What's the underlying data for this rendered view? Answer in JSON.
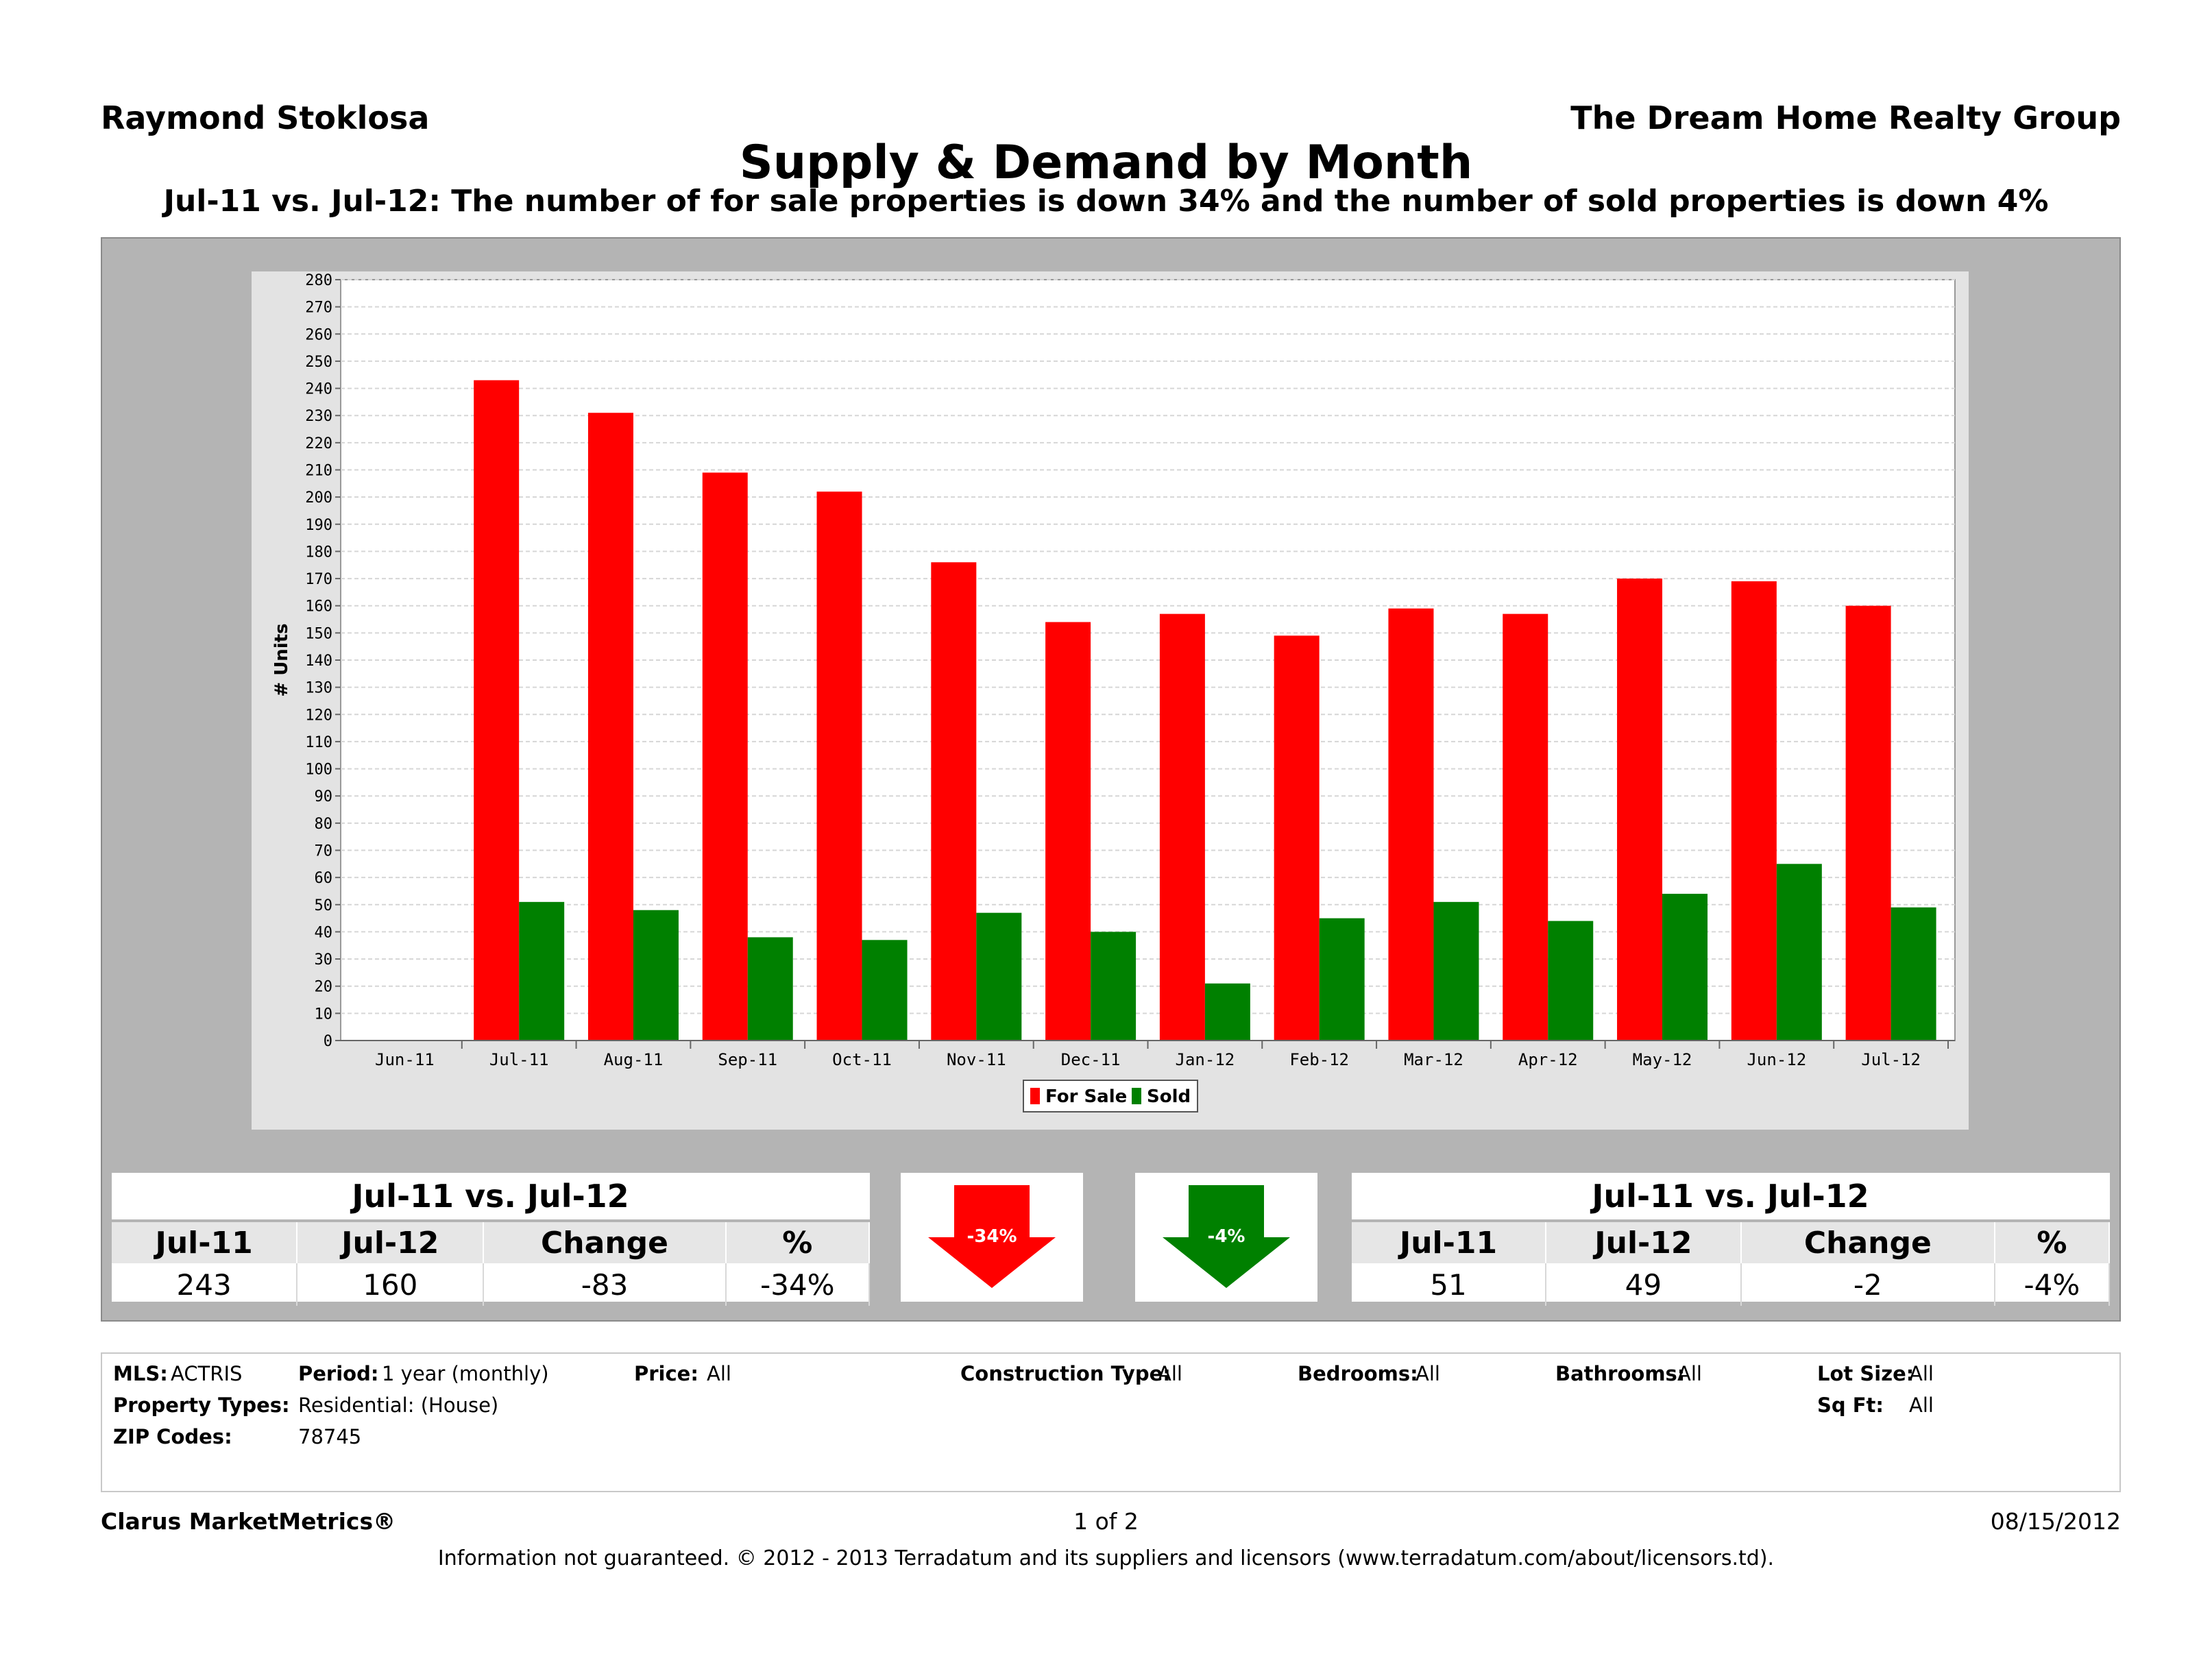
{
  "header": {
    "agent": "Raymond Stoklosa",
    "company": "The Dream Home Realty Group"
  },
  "chart_data": {
    "type": "bar",
    "title": "Supply & Demand by Month",
    "subtitle": "Jul-11 vs. Jul-12:  The number of for sale properties is down 34% and the number of sold properties is down 4%",
    "ylabel": "# Units",
    "xlabel": "",
    "ylim": [
      0,
      280
    ],
    "y_step": 10,
    "grid": true,
    "legend_position": "bottom-center",
    "categories": [
      "Jun-11",
      "Jul-11",
      "Aug-11",
      "Sep-11",
      "Oct-11",
      "Nov-11",
      "Dec-11",
      "Jan-12",
      "Feb-12",
      "Mar-12",
      "Apr-12",
      "May-12",
      "Jun-12",
      "Jul-12"
    ],
    "series": [
      {
        "name": "For Sale",
        "color": "#ff0000",
        "values": [
          null,
          243,
          231,
          209,
          202,
          176,
          154,
          157,
          149,
          159,
          157,
          170,
          169,
          160
        ]
      },
      {
        "name": "Sold",
        "color": "#008000",
        "values": [
          null,
          51,
          48,
          38,
          37,
          47,
          40,
          21,
          45,
          51,
          44,
          54,
          65,
          49
        ]
      }
    ]
  },
  "summary": {
    "for_sale": {
      "heading": "Jul-11 vs. Jul-12",
      "cols": [
        "Jul-11",
        "Jul-12",
        "Change",
        "%"
      ],
      "vals": [
        "243",
        "160",
        "-83",
        "-34%"
      ],
      "arrow_label": "-34%",
      "arrow_color": "#ff0000"
    },
    "sold": {
      "heading": "Jul-11 vs. Jul-12",
      "cols": [
        "Jul-11",
        "Jul-12",
        "Change",
        "%"
      ],
      "vals": [
        "51",
        "49",
        "-2",
        "-4%"
      ],
      "arrow_label": "-4%",
      "arrow_color": "#008000"
    }
  },
  "criteria": {
    "mls_label": "MLS:",
    "mls_value": "ACTRIS",
    "period_label": "Period:",
    "period_value": "1 year (monthly)",
    "price_label": "Price:",
    "price_value": "All",
    "construction_label": "Construction Type:",
    "construction_value": "All",
    "bedrooms_label": "Bedrooms:",
    "bedrooms_value": "All",
    "bathrooms_label": "Bathrooms:",
    "bathrooms_value": "All",
    "lot_label": "Lot Size:",
    "lot_value": "All",
    "sqft_label": "Sq Ft:",
    "sqft_value": "All",
    "proptype_label": "Property Types:",
    "proptype_value": "Residential: (House)",
    "zip_label": "ZIP Codes:",
    "zip_value": "78745"
  },
  "footer": {
    "brand": "Clarus MarketMetrics®",
    "page": "1 of 2",
    "date": "08/15/2012",
    "disclaimer": "Information not guaranteed.  © 2012 - 2013 Terradatum and its suppliers and licensors (www.terradatum.com/about/licensors.td)."
  }
}
